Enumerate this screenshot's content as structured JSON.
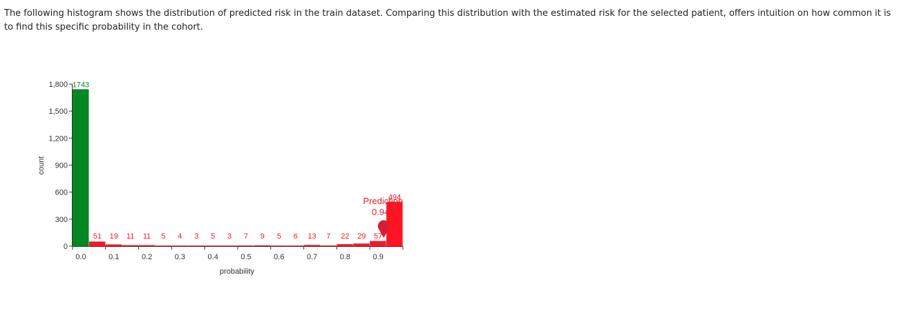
{
  "description": "The following histogram shows the distribution of predicted risk in the train dataset. Comparing this distribution with the estimated risk for the selected patient, offers intuition on how common it is to find this specific probability in the cohort.",
  "colors": {
    "green": "#058722",
    "red": "#ff1424",
    "marker": "#d42033",
    "annotation": "#e0202e"
  },
  "chart_data": {
    "type": "bar",
    "title": "",
    "xlabel": "probability",
    "ylabel": "count",
    "ylim": [
      0,
      1800
    ],
    "xlim": [
      0,
      1
    ],
    "yticks": [
      0,
      300,
      600,
      900,
      1200,
      1500,
      1800
    ],
    "ytick_labels": [
      "0",
      "300",
      "600",
      "900",
      "1,200",
      "1,500",
      "1,800"
    ],
    "xticks": [
      0.0,
      0.1,
      0.2,
      0.3,
      0.4,
      0.5,
      0.6,
      0.7,
      0.8,
      0.9
    ],
    "xtick_labels": [
      "0.0",
      "0.1",
      "0.2",
      "0.3",
      "0.4",
      "0.5",
      "0.6",
      "0.7",
      "0.8",
      "0.9"
    ],
    "bin_width": 0.05,
    "bins": [
      {
        "x0": 0.0,
        "value": 1743,
        "label": "1743",
        "color": "green"
      },
      {
        "x0": 0.05,
        "value": 51,
        "label": "51",
        "color": "red"
      },
      {
        "x0": 0.1,
        "value": 19,
        "label": "19",
        "color": "red"
      },
      {
        "x0": 0.15,
        "value": 11,
        "label": "11",
        "color": "red"
      },
      {
        "x0": 0.2,
        "value": 11,
        "label": "11",
        "color": "red"
      },
      {
        "x0": 0.25,
        "value": 5,
        "label": "5",
        "color": "red"
      },
      {
        "x0": 0.3,
        "value": 4,
        "label": "4",
        "color": "red"
      },
      {
        "x0": 0.35,
        "value": 3,
        "label": "3",
        "color": "red"
      },
      {
        "x0": 0.4,
        "value": 5,
        "label": "5",
        "color": "red"
      },
      {
        "x0": 0.45,
        "value": 3,
        "label": "3",
        "color": "red"
      },
      {
        "x0": 0.5,
        "value": 7,
        "label": "7",
        "color": "red"
      },
      {
        "x0": 0.55,
        "value": 9,
        "label": "9",
        "color": "red"
      },
      {
        "x0": 0.6,
        "value": 5,
        "label": "5",
        "color": "red"
      },
      {
        "x0": 0.65,
        "value": 6,
        "label": "6",
        "color": "red"
      },
      {
        "x0": 0.7,
        "value": 13,
        "label": "13",
        "color": "red"
      },
      {
        "x0": 0.75,
        "value": 7,
        "label": "7",
        "color": "red"
      },
      {
        "x0": 0.8,
        "value": 22,
        "label": "22",
        "color": "red"
      },
      {
        "x0": 0.85,
        "value": 29,
        "label": "29",
        "color": "red"
      },
      {
        "x0": 0.9,
        "value": 57,
        "label": "57",
        "color": "red"
      },
      {
        "x0": 0.95,
        "value": 494,
        "label": "494",
        "color": "red"
      }
    ],
    "prediction": {
      "label": "Prediction",
      "value_label": "0.942",
      "value": 0.942
    }
  }
}
